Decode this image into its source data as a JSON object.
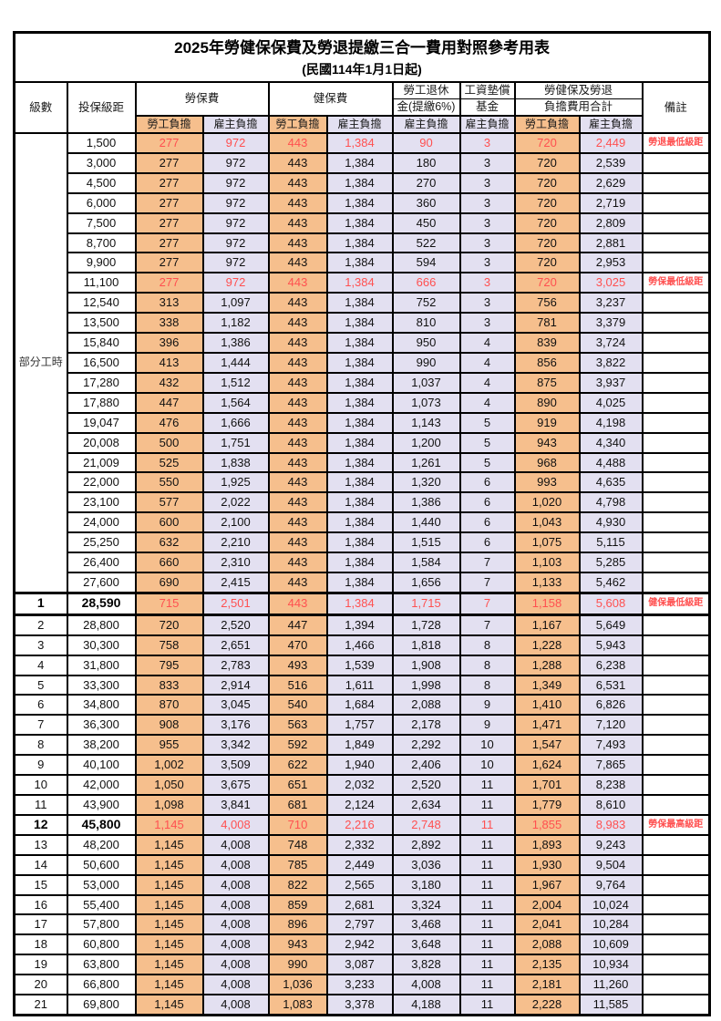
{
  "page": {
    "title": "2025年勞健保保費及勞退提繳三合一費用對照參考用表",
    "subtitle": "(民國114年1月1日起)"
  },
  "colors": {
    "employee_col_bg": "#F6BF8D",
    "employer_col_bg": "#E3E0F1",
    "highlight_text": "#FF5050",
    "border": "#000000"
  },
  "table": {
    "header": {
      "level": "級數",
      "bracket": "投保級距",
      "labor_insurance": "勞保費",
      "health_insurance": "健保費",
      "pension_line1": "勞工退休",
      "pension_line2": "金(提繳6%)",
      "wage_fund_line1": "工資墊償",
      "wage_fund_line2": "基金",
      "total_line1": "勞健保及勞退",
      "total_line2": "負擔費用合計",
      "remark": "備註",
      "employee_share": "勞工負擔",
      "employer_share": "雇主負擔"
    },
    "part_time": {
      "label": "部分工時",
      "row_span": 23
    },
    "rows": [
      {
        "level": "",
        "bracket": "1,500",
        "values": [
          "277",
          "972",
          "443",
          "1,384",
          "90",
          "3",
          "720",
          "2,449"
        ],
        "remark": "勞退最低級距",
        "highlight": true,
        "key": false,
        "thick": false
      },
      {
        "level": "",
        "bracket": "3,000",
        "values": [
          "277",
          "972",
          "443",
          "1,384",
          "180",
          "3",
          "720",
          "2,539"
        ],
        "remark": "",
        "highlight": false,
        "key": false,
        "thick": false
      },
      {
        "level": "",
        "bracket": "4,500",
        "values": [
          "277",
          "972",
          "443",
          "1,384",
          "270",
          "3",
          "720",
          "2,629"
        ],
        "remark": "",
        "highlight": false,
        "key": false,
        "thick": false
      },
      {
        "level": "",
        "bracket": "6,000",
        "values": [
          "277",
          "972",
          "443",
          "1,384",
          "360",
          "3",
          "720",
          "2,719"
        ],
        "remark": "",
        "highlight": false,
        "key": false,
        "thick": false
      },
      {
        "level": "",
        "bracket": "7,500",
        "values": [
          "277",
          "972",
          "443",
          "1,384",
          "450",
          "3",
          "720",
          "2,809"
        ],
        "remark": "",
        "highlight": false,
        "key": false,
        "thick": false
      },
      {
        "level": "",
        "bracket": "8,700",
        "values": [
          "277",
          "972",
          "443",
          "1,384",
          "522",
          "3",
          "720",
          "2,881"
        ],
        "remark": "",
        "highlight": false,
        "key": false,
        "thick": false
      },
      {
        "level": "",
        "bracket": "9,900",
        "values": [
          "277",
          "972",
          "443",
          "1,384",
          "594",
          "3",
          "720",
          "2,953"
        ],
        "remark": "",
        "highlight": false,
        "key": false,
        "thick": false
      },
      {
        "level": "",
        "bracket": "11,100",
        "values": [
          "277",
          "972",
          "443",
          "1,384",
          "666",
          "3",
          "720",
          "3,025"
        ],
        "remark": "勞保最低級距",
        "highlight": true,
        "key": false,
        "thick": false
      },
      {
        "level": "",
        "bracket": "12,540",
        "values": [
          "313",
          "1,097",
          "443",
          "1,384",
          "752",
          "3",
          "756",
          "3,237"
        ],
        "remark": "",
        "highlight": false,
        "key": false,
        "thick": false
      },
      {
        "level": "",
        "bracket": "13,500",
        "values": [
          "338",
          "1,182",
          "443",
          "1,384",
          "810",
          "3",
          "781",
          "3,379"
        ],
        "remark": "",
        "highlight": false,
        "key": false,
        "thick": false
      },
      {
        "level": "",
        "bracket": "15,840",
        "values": [
          "396",
          "1,386",
          "443",
          "1,384",
          "950",
          "4",
          "839",
          "3,724"
        ],
        "remark": "",
        "highlight": false,
        "key": false,
        "thick": false
      },
      {
        "level": "",
        "bracket": "16,500",
        "values": [
          "413",
          "1,444",
          "443",
          "1,384",
          "990",
          "4",
          "856",
          "3,822"
        ],
        "remark": "",
        "highlight": false,
        "key": false,
        "thick": false
      },
      {
        "level": "",
        "bracket": "17,280",
        "values": [
          "432",
          "1,512",
          "443",
          "1,384",
          "1,037",
          "4",
          "875",
          "3,937"
        ],
        "remark": "",
        "highlight": false,
        "key": false,
        "thick": false
      },
      {
        "level": "",
        "bracket": "17,880",
        "values": [
          "447",
          "1,564",
          "443",
          "1,384",
          "1,073",
          "4",
          "890",
          "4,025"
        ],
        "remark": "",
        "highlight": false,
        "key": false,
        "thick": false
      },
      {
        "level": "",
        "bracket": "19,047",
        "values": [
          "476",
          "1,666",
          "443",
          "1,384",
          "1,143",
          "5",
          "919",
          "4,198"
        ],
        "remark": "",
        "highlight": false,
        "key": false,
        "thick": false
      },
      {
        "level": "",
        "bracket": "20,008",
        "values": [
          "500",
          "1,751",
          "443",
          "1,384",
          "1,200",
          "5",
          "943",
          "4,340"
        ],
        "remark": "",
        "highlight": false,
        "key": false,
        "thick": false
      },
      {
        "level": "",
        "bracket": "21,009",
        "values": [
          "525",
          "1,838",
          "443",
          "1,384",
          "1,261",
          "5",
          "968",
          "4,488"
        ],
        "remark": "",
        "highlight": false,
        "key": false,
        "thick": false
      },
      {
        "level": "",
        "bracket": "22,000",
        "values": [
          "550",
          "1,925",
          "443",
          "1,384",
          "1,320",
          "6",
          "993",
          "4,635"
        ],
        "remark": "",
        "highlight": false,
        "key": false,
        "thick": false
      },
      {
        "level": "",
        "bracket": "23,100",
        "values": [
          "577",
          "2,022",
          "443",
          "1,384",
          "1,386",
          "6",
          "1,020",
          "4,798"
        ],
        "remark": "",
        "highlight": false,
        "key": false,
        "thick": false
      },
      {
        "level": "",
        "bracket": "24,000",
        "values": [
          "600",
          "2,100",
          "443",
          "1,384",
          "1,440",
          "6",
          "1,043",
          "4,930"
        ],
        "remark": "",
        "highlight": false,
        "key": false,
        "thick": false
      },
      {
        "level": "",
        "bracket": "25,250",
        "values": [
          "632",
          "2,210",
          "443",
          "1,384",
          "1,515",
          "6",
          "1,075",
          "5,115"
        ],
        "remark": "",
        "highlight": false,
        "key": false,
        "thick": false
      },
      {
        "level": "",
        "bracket": "26,400",
        "values": [
          "660",
          "2,310",
          "443",
          "1,384",
          "1,584",
          "7",
          "1,103",
          "5,285"
        ],
        "remark": "",
        "highlight": false,
        "key": false,
        "thick": false
      },
      {
        "level": "",
        "bracket": "27,600",
        "values": [
          "690",
          "2,415",
          "443",
          "1,384",
          "1,656",
          "7",
          "1,133",
          "5,462"
        ],
        "remark": "",
        "highlight": false,
        "key": false,
        "thick": false
      },
      {
        "level": "1",
        "bracket": "28,590",
        "values": [
          "715",
          "2,501",
          "443",
          "1,384",
          "1,715",
          "7",
          "1,158",
          "5,608"
        ],
        "remark": "健保最低級距",
        "highlight": true,
        "key": true,
        "thick": true
      },
      {
        "level": "2",
        "bracket": "28,800",
        "values": [
          "720",
          "2,520",
          "447",
          "1,394",
          "1,728",
          "7",
          "1,167",
          "5,649"
        ],
        "remark": "",
        "highlight": false,
        "key": false,
        "thick": false
      },
      {
        "level": "3",
        "bracket": "30,300",
        "values": [
          "758",
          "2,651",
          "470",
          "1,466",
          "1,818",
          "8",
          "1,228",
          "5,943"
        ],
        "remark": "",
        "highlight": false,
        "key": false,
        "thick": false
      },
      {
        "level": "4",
        "bracket": "31,800",
        "values": [
          "795",
          "2,783",
          "493",
          "1,539",
          "1,908",
          "8",
          "1,288",
          "6,238"
        ],
        "remark": "",
        "highlight": false,
        "key": false,
        "thick": false
      },
      {
        "level": "5",
        "bracket": "33,300",
        "values": [
          "833",
          "2,914",
          "516",
          "1,611",
          "1,998",
          "8",
          "1,349",
          "6,531"
        ],
        "remark": "",
        "highlight": false,
        "key": false,
        "thick": false
      },
      {
        "level": "6",
        "bracket": "34,800",
        "values": [
          "870",
          "3,045",
          "540",
          "1,684",
          "2,088",
          "9",
          "1,410",
          "6,826"
        ],
        "remark": "",
        "highlight": false,
        "key": false,
        "thick": false
      },
      {
        "level": "7",
        "bracket": "36,300",
        "values": [
          "908",
          "3,176",
          "563",
          "1,757",
          "2,178",
          "9",
          "1,471",
          "7,120"
        ],
        "remark": "",
        "highlight": false,
        "key": false,
        "thick": false
      },
      {
        "level": "8",
        "bracket": "38,200",
        "values": [
          "955",
          "3,342",
          "592",
          "1,849",
          "2,292",
          "10",
          "1,547",
          "7,493"
        ],
        "remark": "",
        "highlight": false,
        "key": false,
        "thick": false
      },
      {
        "level": "9",
        "bracket": "40,100",
        "values": [
          "1,002",
          "3,509",
          "622",
          "1,940",
          "2,406",
          "10",
          "1,624",
          "7,865"
        ],
        "remark": "",
        "highlight": false,
        "key": false,
        "thick": false
      },
      {
        "level": "10",
        "bracket": "42,000",
        "values": [
          "1,050",
          "3,675",
          "651",
          "2,032",
          "2,520",
          "11",
          "1,701",
          "8,238"
        ],
        "remark": "",
        "highlight": false,
        "key": false,
        "thick": false
      },
      {
        "level": "11",
        "bracket": "43,900",
        "values": [
          "1,098",
          "3,841",
          "681",
          "2,124",
          "2,634",
          "11",
          "1,779",
          "8,610"
        ],
        "remark": "",
        "highlight": false,
        "key": false,
        "thick": false
      },
      {
        "level": "12",
        "bracket": "45,800",
        "values": [
          "1,145",
          "4,008",
          "710",
          "2,216",
          "2,748",
          "11",
          "1,855",
          "8,983"
        ],
        "remark": "勞保最高級距",
        "highlight": true,
        "key": true,
        "thick": false
      },
      {
        "level": "13",
        "bracket": "48,200",
        "values": [
          "1,145",
          "4,008",
          "748",
          "2,332",
          "2,892",
          "11",
          "1,893",
          "9,243"
        ],
        "remark": "",
        "highlight": false,
        "key": false,
        "thick": false
      },
      {
        "level": "14",
        "bracket": "50,600",
        "values": [
          "1,145",
          "4,008",
          "785",
          "2,449",
          "3,036",
          "11",
          "1,930",
          "9,504"
        ],
        "remark": "",
        "highlight": false,
        "key": false,
        "thick": false
      },
      {
        "level": "15",
        "bracket": "53,000",
        "values": [
          "1,145",
          "4,008",
          "822",
          "2,565",
          "3,180",
          "11",
          "1,967",
          "9,764"
        ],
        "remark": "",
        "highlight": false,
        "key": false,
        "thick": false
      },
      {
        "level": "16",
        "bracket": "55,400",
        "values": [
          "1,145",
          "4,008",
          "859",
          "2,681",
          "3,324",
          "11",
          "2,004",
          "10,024"
        ],
        "remark": "",
        "highlight": false,
        "key": false,
        "thick": false
      },
      {
        "level": "17",
        "bracket": "57,800",
        "values": [
          "1,145",
          "4,008",
          "896",
          "2,797",
          "3,468",
          "11",
          "2,041",
          "10,284"
        ],
        "remark": "",
        "highlight": false,
        "key": false,
        "thick": false
      },
      {
        "level": "18",
        "bracket": "60,800",
        "values": [
          "1,145",
          "4,008",
          "943",
          "2,942",
          "3,648",
          "11",
          "2,088",
          "10,609"
        ],
        "remark": "",
        "highlight": false,
        "key": false,
        "thick": false
      },
      {
        "level": "19",
        "bracket": "63,800",
        "values": [
          "1,145",
          "4,008",
          "990",
          "3,087",
          "3,828",
          "11",
          "2,135",
          "10,934"
        ],
        "remark": "",
        "highlight": false,
        "key": false,
        "thick": false
      },
      {
        "level": "20",
        "bracket": "66,800",
        "values": [
          "1,145",
          "4,008",
          "1,036",
          "3,233",
          "4,008",
          "11",
          "2,181",
          "11,260"
        ],
        "remark": "",
        "highlight": false,
        "key": false,
        "thick": false
      },
      {
        "level": "21",
        "bracket": "69,800",
        "values": [
          "1,145",
          "4,008",
          "1,083",
          "3,378",
          "4,188",
          "11",
          "2,228",
          "11,585"
        ],
        "remark": "",
        "highlight": false,
        "key": false,
        "thick": false
      }
    ]
  }
}
